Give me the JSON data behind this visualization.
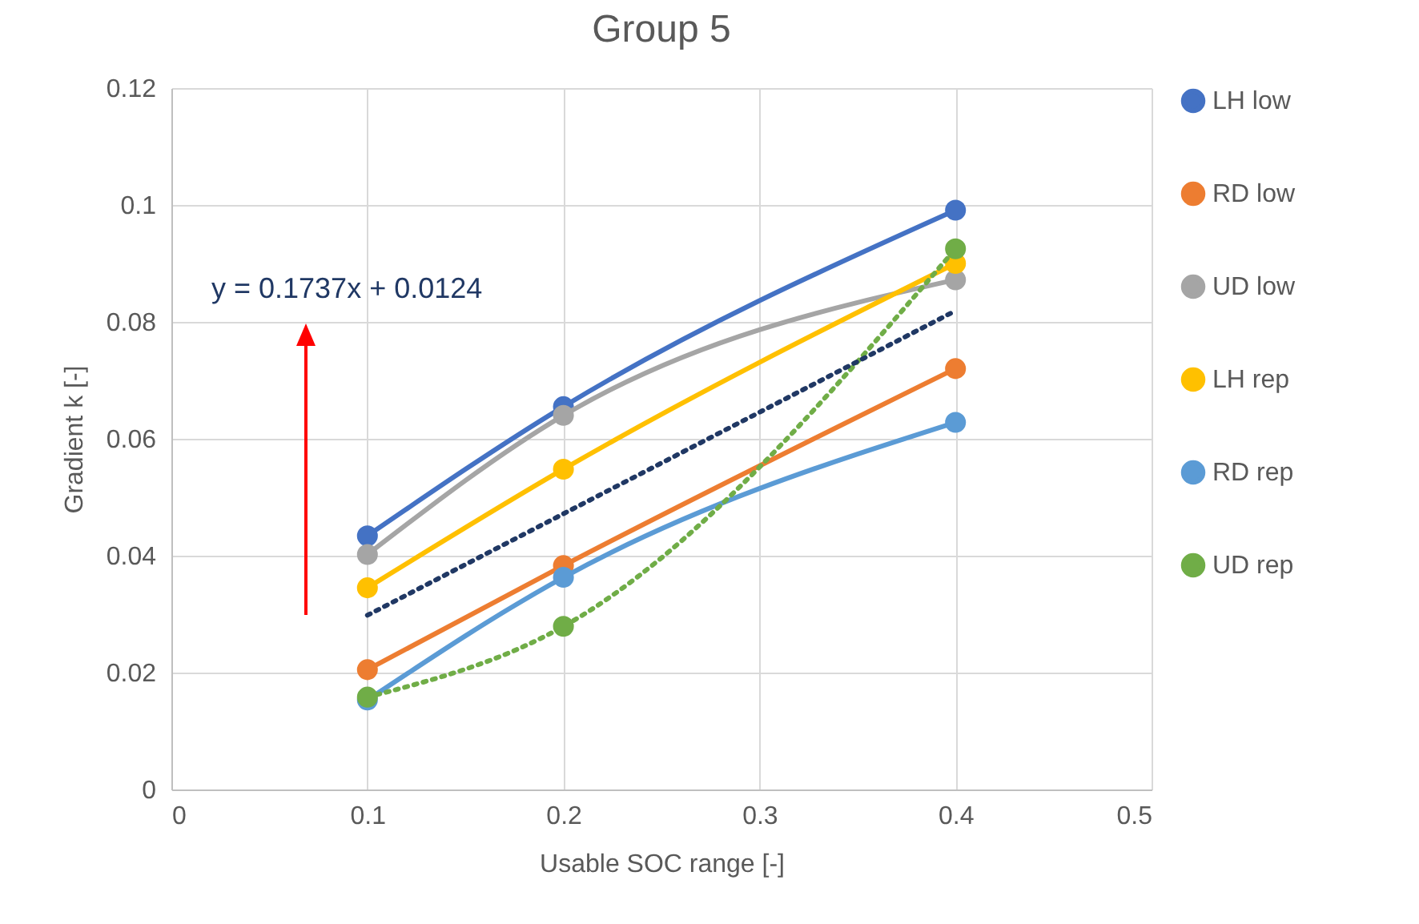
{
  "chart_data": {
    "type": "line",
    "title": "Group 5",
    "xlabel": "Usable SOC range [-]",
    "ylabel": "Gradient k [-]",
    "x": [
      0.1,
      0.2,
      0.4
    ],
    "series": [
      {
        "name": "LH low",
        "color": "#4472c4",
        "values": [
          0.0434,
          0.0655,
          0.0991
        ]
      },
      {
        "name": "RD low",
        "color": "#ed7d31",
        "values": [
          0.0205,
          0.0383,
          0.072
        ]
      },
      {
        "name": "UD low",
        "color": "#a5a5a5",
        "values": [
          0.0402,
          0.064,
          0.0872
        ]
      },
      {
        "name": "LH rep",
        "color": "#ffc000",
        "values": [
          0.0345,
          0.0548,
          0.09
        ]
      },
      {
        "name": "RD rep",
        "color": "#5b9bd5",
        "values": [
          0.0153,
          0.0363,
          0.0628
        ]
      },
      {
        "name": "UD rep",
        "color": "#70ad47",
        "values": [
          0.0158,
          0.0279,
          0.0925
        ],
        "line_style": "dotted"
      },
      {
        "type": "line",
        "color": "#203864",
        "x": [
          0.1,
          0.4
        ],
        "values": [
          0.0298,
          0.0819
        ],
        "line_style": "dotted",
        "marker": "none"
      }
    ],
    "annotations": [
      "y = 0.1737x + 0.0124"
    ],
    "xlim": [
      0,
      0.5
    ],
    "xticks": [
      0,
      0.1,
      0.2,
      0.3,
      0.4,
      0.5
    ],
    "ylim": [
      0,
      0.12
    ],
    "yticks": [
      0,
      0.02,
      0.04,
      0.06,
      0.08,
      0.1,
      0.12
    ],
    "grid": true,
    "legend": "right",
    "marker": "circle",
    "line_style": "solid"
  }
}
